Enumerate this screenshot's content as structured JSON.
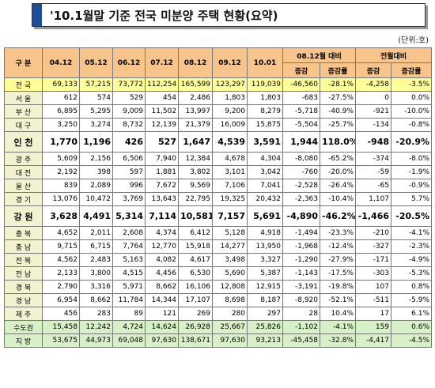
{
  "header": {
    "title": "'10.1월말 기준 전국 미분양 주택 현황(요약)",
    "unit": "(단위:호)"
  },
  "table": {
    "header_row_1": [
      "구 분",
      "04.12",
      "05.12",
      "06.12",
      "07.12",
      "08.12",
      "09.12",
      "10.01",
      "08.12월 대비",
      "전월대비"
    ],
    "header_row_2": [
      "증감",
      "증감률",
      "증감",
      "증감률"
    ],
    "rows": [
      [
        "전 국",
        "69,133",
        "57,215",
        "73,772",
        "112,254",
        "165,599",
        "123,297",
        "119,039",
        "-46,560",
        "-28.1%",
        "-4,258",
        "-3.5%"
      ],
      [
        "서 울",
        "612",
        "574",
        "529",
        "454",
        "2,486",
        "1,803",
        "1,803",
        "-683",
        "-27.5%",
        "0",
        "0.0%"
      ],
      [
        "부 산",
        "6,895",
        "5,295",
        "9,009",
        "11,502",
        "13,997",
        "9,200",
        "8,279",
        "-5,718",
        "-40.9%",
        "-921",
        "-10.0%"
      ],
      [
        "대 구",
        "3,250",
        "3,274",
        "8,732",
        "12,139",
        "21,379",
        "16,009",
        "15,875",
        "-5,504",
        "-25.7%",
        "-134",
        "-0.8%"
      ],
      [
        "인 천",
        "1,770",
        "1,196",
        "426",
        "527",
        "1,647",
        "4,539",
        "3,591",
        "1,944",
        "118.0%",
        "-948",
        "-20.9%"
      ],
      [
        "광 주",
        "5,609",
        "2,156",
        "6,506",
        "7,940",
        "12,384",
        "4,678",
        "4,304",
        "-8,080",
        "-65.2%",
        "-374",
        "-8.0%"
      ],
      [
        "대 전",
        "2,192",
        "398",
        "597",
        "1,881",
        "3,802",
        "3,101",
        "3,042",
        "-760",
        "-20.0%",
        "-59",
        "-1.9%"
      ],
      [
        "울 산",
        "839",
        "2,089",
        "996",
        "7,672",
        "9,569",
        "7,106",
        "7,041",
        "-2,528",
        "-26.4%",
        "-65",
        "-0.9%"
      ],
      [
        "경 기",
        "13,076",
        "10,472",
        "3,769",
        "13,643",
        "22,795",
        "19,325",
        "20,432",
        "-2,363",
        "-10.4%",
        "1,107",
        "5.7%"
      ],
      [
        "강 원",
        "3,628",
        "4,491",
        "5,314",
        "7,114",
        "10,581",
        "7,157",
        "5,691",
        "-4,890",
        "-46.2%",
        "-1,466",
        "-20.5%"
      ],
      [
        "충 북",
        "4,652",
        "2,011",
        "2,608",
        "4,374",
        "6,412",
        "5,128",
        "4,918",
        "-1,494",
        "-23.3%",
        "-210",
        "-4.1%"
      ],
      [
        "충 남",
        "9,715",
        "6,715",
        "7,764",
        "12,770",
        "15,918",
        "14,277",
        "13,950",
        "-1,968",
        "-12.4%",
        "-327",
        "-2.3%"
      ],
      [
        "전 북",
        "4,562",
        "2,483",
        "5,163",
        "4,082",
        "4,617",
        "3,498",
        "3,327",
        "-1,290",
        "-27.9%",
        "-171",
        "-4.9%"
      ],
      [
        "전 남",
        "2,133",
        "3,800",
        "4,515",
        "4,456",
        "6,530",
        "5,690",
        "5,387",
        "-1,143",
        "-17.5%",
        "-303",
        "-5.3%"
      ],
      [
        "경 북",
        "2,790",
        "3,316",
        "5,971",
        "8,662",
        "16,106",
        "12,808",
        "12,915",
        "-3,191",
        "-19.8%",
        "107",
        "0.8%"
      ],
      [
        "경 남",
        "6,954",
        "8,662",
        "11,784",
        "14,344",
        "17,107",
        "8,698",
        "8,187",
        "-8,920",
        "-52.1%",
        "-511",
        "-5.9%"
      ],
      [
        "제 주",
        "456",
        "283",
        "89",
        "121",
        "269",
        "280",
        "297",
        "28",
        "10.4%",
        "17",
        "6.1%"
      ],
      [
        "수도권",
        "15,458",
        "12,242",
        "4,724",
        "14,624",
        "26,928",
        "25,667",
        "25,826",
        "-1,102",
        "-4.1%",
        "159",
        "0.6%"
      ],
      [
        "지 방",
        "53,675",
        "44,973",
        "69,048",
        "97,630",
        "138,671",
        "97,630",
        "93,213",
        "-45,458",
        "-32.8%",
        "-4,417",
        "-4.5%"
      ]
    ]
  }
}
